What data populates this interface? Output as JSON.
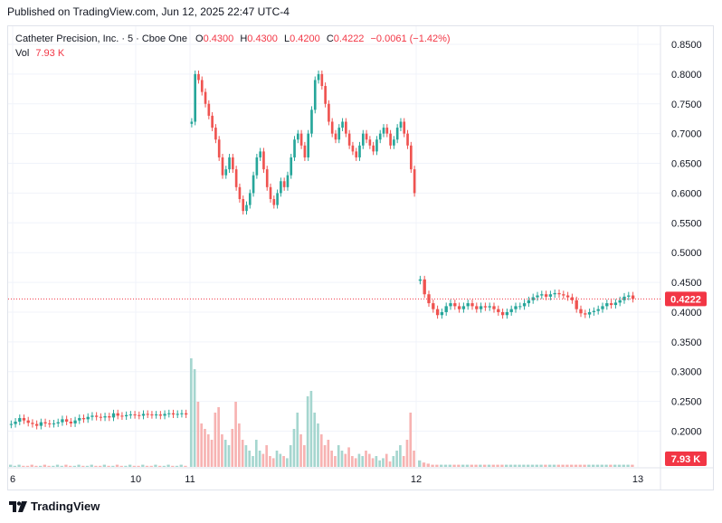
{
  "header": {
    "published": "Published on TradingView.com, Jun 12, 2025 22:47 UTC-4"
  },
  "legend": {
    "symbol": "Catheter Precision, Inc.",
    "interval": "5",
    "exchange": "Cboe One",
    "o_label": "O",
    "o_value": "0.4300",
    "h_label": "H",
    "h_value": "0.4300",
    "l_label": "L",
    "l_value": "0.4200",
    "c_label": "C",
    "c_value": "0.4222",
    "change": "−0.0061 (−1.42%)",
    "vol_label": "Vol",
    "vol_value": "7.93 K"
  },
  "footer": {
    "brand": "TradingView",
    "logo_icon": "tradingview-logo-icon"
  },
  "colors": {
    "up": "#26a69a",
    "down": "#ef5350",
    "up_vol": "#a5d6cf",
    "down_vol": "#f7b3b2",
    "price_line": "#f23645",
    "grid": "#f0f3fa"
  },
  "chart_data": {
    "type": "candlestick",
    "y_axis": {
      "ticks": [
        "0.8500",
        "0.8000",
        "0.7500",
        "0.7000",
        "0.6500",
        "0.6000",
        "0.5500",
        "0.5000",
        "0.4500",
        "0.4000",
        "0.3500",
        "0.3000",
        "0.2500",
        "0.2000"
      ],
      "range": [
        0.17,
        0.865
      ]
    },
    "x_axis": {
      "ticks": [
        "6",
        "10",
        "11",
        "12",
        "13"
      ]
    },
    "last_price": {
      "value": 0.4222,
      "label": "0.4222"
    },
    "volume_label": "7.93 K",
    "sessions": [
      {
        "name": "pre-11",
        "points": [
          0.212,
          0.216,
          0.222,
          0.218,
          0.214,
          0.212,
          0.209,
          0.215,
          0.213,
          0.212,
          0.213,
          0.215,
          0.22,
          0.216,
          0.213,
          0.218,
          0.222,
          0.22,
          0.224,
          0.226,
          0.224,
          0.223,
          0.225,
          0.223,
          0.23,
          0.226,
          0.225,
          0.227,
          0.228,
          0.227,
          0.226,
          0.229,
          0.228,
          0.227,
          0.228,
          0.226,
          0.229,
          0.23,
          0.228,
          0.229,
          0.23,
          0.228
        ]
      },
      {
        "name": "day-11",
        "points": [
          0.72,
          0.8,
          0.79,
          0.77,
          0.75,
          0.73,
          0.71,
          0.69,
          0.66,
          0.63,
          0.64,
          0.66,
          0.64,
          0.61,
          0.59,
          0.57,
          0.58,
          0.6,
          0.63,
          0.66,
          0.67,
          0.64,
          0.61,
          0.59,
          0.58,
          0.6,
          0.62,
          0.61,
          0.63,
          0.66,
          0.69,
          0.7,
          0.68,
          0.66,
          0.7,
          0.74,
          0.79,
          0.8,
          0.78,
          0.75,
          0.72,
          0.7,
          0.69,
          0.71,
          0.72,
          0.7,
          0.68,
          0.67,
          0.66,
          0.68,
          0.7,
          0.69,
          0.68,
          0.67,
          0.69,
          0.7,
          0.71,
          0.7,
          0.68,
          0.69,
          0.71,
          0.72,
          0.7,
          0.68,
          0.64,
          0.6
        ]
      },
      {
        "name": "day-12",
        "points": [
          0.455,
          0.43,
          0.415,
          0.405,
          0.395,
          0.4,
          0.41,
          0.415,
          0.41,
          0.405,
          0.41,
          0.415,
          0.41,
          0.405,
          0.41,
          0.408,
          0.41,
          0.405,
          0.4,
          0.395,
          0.4,
          0.405,
          0.41,
          0.41,
          0.415,
          0.42,
          0.425,
          0.428,
          0.43,
          0.426,
          0.43,
          0.432,
          0.43,
          0.428,
          0.425,
          0.42,
          0.405,
          0.398,
          0.396,
          0.4,
          0.402,
          0.405,
          0.41,
          0.415,
          0.412,
          0.416,
          0.42,
          0.426,
          0.428,
          0.4222
        ]
      }
    ],
    "volume_days": [
      {
        "name": "pre-11",
        "values": [
          0.02,
          0.01,
          0.02,
          0.01,
          0.01,
          0.02,
          0.01,
          0.01,
          0.02,
          0.01,
          0.01,
          0.02,
          0.01,
          0.02,
          0.01,
          0.01,
          0.02,
          0.01,
          0.01,
          0.02,
          0.01,
          0.01,
          0.02,
          0.01,
          0.01,
          0.02,
          0.01,
          0.01,
          0.02,
          0.01,
          0.01,
          0.02,
          0.01,
          0.01,
          0.02,
          0.01,
          0.01,
          0.02,
          0.01,
          0.01,
          0.02,
          0.01
        ]
      },
      {
        "name": "day-11",
        "values": [
          1.0,
          0.9,
          0.6,
          0.4,
          0.35,
          0.3,
          0.25,
          0.5,
          0.55,
          0.3,
          0.25,
          0.2,
          0.35,
          0.6,
          0.4,
          0.25,
          0.2,
          0.15,
          0.1,
          0.25,
          0.15,
          0.12,
          0.2,
          0.1,
          0.08,
          0.15,
          0.12,
          0.1,
          0.08,
          0.2,
          0.35,
          0.5,
          0.3,
          0.2,
          0.65,
          0.7,
          0.5,
          0.4,
          0.3,
          0.2,
          0.25,
          0.15,
          0.1,
          0.2,
          0.15,
          0.12,
          0.18,
          0.1,
          0.08,
          0.12,
          0.1,
          0.15,
          0.12,
          0.08,
          0.1,
          0.06,
          0.08,
          0.12,
          0.05,
          0.1,
          0.15,
          0.2,
          0.1,
          0.25,
          0.5,
          0.15
        ]
      },
      {
        "name": "day-12",
        "values": [
          0.06,
          0.04,
          0.03,
          0.02,
          0.02,
          0.02,
          0.02,
          0.02,
          0.02,
          0.02,
          0.02,
          0.02,
          0.02,
          0.02,
          0.02,
          0.02,
          0.02,
          0.02,
          0.02,
          0.02,
          0.02,
          0.02,
          0.02,
          0.02,
          0.02,
          0.02,
          0.02,
          0.02,
          0.02,
          0.02,
          0.02,
          0.02,
          0.02,
          0.02,
          0.02,
          0.02,
          0.02,
          0.02,
          0.02,
          0.02,
          0.02,
          0.02,
          0.02,
          0.02,
          0.02,
          0.02,
          0.02,
          0.02,
          0.02,
          0.02
        ]
      }
    ]
  }
}
